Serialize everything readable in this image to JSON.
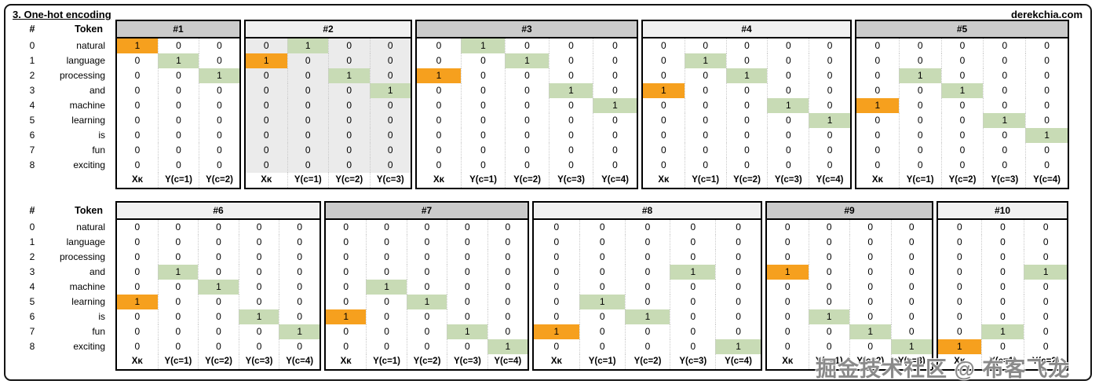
{
  "title": "3. One-hot encoding",
  "site": "derekchia.com",
  "watermark": "掘金技术社区 @ 布客飞龙",
  "colors": {
    "orange": "#F6A01E",
    "green": "#C8DBB5",
    "header_dark": "#CBCBCB",
    "header_light": "#F0F0F0",
    "shaded_body": "#EBEBEB"
  },
  "legend": {
    "hash": "#",
    "token": "Token"
  },
  "tokens": [
    {
      "id": "0",
      "label": "natural"
    },
    {
      "id": "1",
      "label": "language"
    },
    {
      "id": "2",
      "label": "processing"
    },
    {
      "id": "3",
      "label": "and"
    },
    {
      "id": "4",
      "label": "machine"
    },
    {
      "id": "5",
      "label": "learning"
    },
    {
      "id": "6",
      "label": "is"
    },
    {
      "id": "7",
      "label": "fun"
    },
    {
      "id": "8",
      "label": "exciting"
    }
  ],
  "cell_values": {
    "default": "0",
    "marked": "1"
  },
  "windows": [
    {
      "label": "#1",
      "header_shade": "dark",
      "body_shaded": false,
      "cols": [
        "Xᴋ",
        "Y(c=1)",
        "Y(c=2)"
      ],
      "marks": [
        {
          "row": 0,
          "col": 0,
          "type": "orange"
        },
        {
          "row": 1,
          "col": 1,
          "type": "green"
        },
        {
          "row": 2,
          "col": 2,
          "type": "green"
        }
      ]
    },
    {
      "label": "#2",
      "header_shade": "light",
      "body_shaded": true,
      "cols": [
        "Xᴋ",
        "Y(c=1)",
        "Y(c=2)",
        "Y(c=3)"
      ],
      "marks": [
        {
          "row": 0,
          "col": 1,
          "type": "green"
        },
        {
          "row": 1,
          "col": 0,
          "type": "orange"
        },
        {
          "row": 2,
          "col": 2,
          "type": "green"
        },
        {
          "row": 3,
          "col": 3,
          "type": "green"
        }
      ]
    },
    {
      "label": "#3",
      "header_shade": "dark",
      "body_shaded": false,
      "cols": [
        "Xᴋ",
        "Y(c=1)",
        "Y(c=2)",
        "Y(c=3)",
        "Y(c=4)"
      ],
      "marks": [
        {
          "row": 0,
          "col": 1,
          "type": "green"
        },
        {
          "row": 1,
          "col": 2,
          "type": "green"
        },
        {
          "row": 2,
          "col": 0,
          "type": "orange"
        },
        {
          "row": 3,
          "col": 3,
          "type": "green"
        },
        {
          "row": 4,
          "col": 4,
          "type": "green"
        }
      ]
    },
    {
      "label": "#4",
      "header_shade": "light",
      "body_shaded": false,
      "cols": [
        "Xᴋ",
        "Y(c=1)",
        "Y(c=2)",
        "Y(c=3)",
        "Y(c=4)"
      ],
      "marks": [
        {
          "row": 1,
          "col": 1,
          "type": "green"
        },
        {
          "row": 2,
          "col": 2,
          "type": "green"
        },
        {
          "row": 3,
          "col": 0,
          "type": "orange"
        },
        {
          "row": 4,
          "col": 3,
          "type": "green"
        },
        {
          "row": 5,
          "col": 4,
          "type": "green"
        }
      ]
    },
    {
      "label": "#5",
      "header_shade": "dark",
      "body_shaded": false,
      "cols": [
        "Xᴋ",
        "Y(c=1)",
        "Y(c=2)",
        "Y(c=3)",
        "Y(c=4)"
      ],
      "marks": [
        {
          "row": 2,
          "col": 1,
          "type": "green"
        },
        {
          "row": 3,
          "col": 2,
          "type": "green"
        },
        {
          "row": 4,
          "col": 0,
          "type": "orange"
        },
        {
          "row": 5,
          "col": 3,
          "type": "green"
        },
        {
          "row": 6,
          "col": 4,
          "type": "green"
        }
      ]
    },
    {
      "label": "#6",
      "header_shade": "light",
      "body_shaded": false,
      "cols": [
        "Xᴋ",
        "Y(c=1)",
        "Y(c=2)",
        "Y(c=3)",
        "Y(c=4)"
      ],
      "marks": [
        {
          "row": 3,
          "col": 1,
          "type": "green"
        },
        {
          "row": 4,
          "col": 2,
          "type": "green"
        },
        {
          "row": 5,
          "col": 0,
          "type": "orange"
        },
        {
          "row": 6,
          "col": 3,
          "type": "green"
        },
        {
          "row": 7,
          "col": 4,
          "type": "green"
        }
      ]
    },
    {
      "label": "#7",
      "header_shade": "dark",
      "body_shaded": false,
      "cols": [
        "Xᴋ",
        "Y(c=1)",
        "Y(c=2)",
        "Y(c=3)",
        "Y(c=4)"
      ],
      "marks": [
        {
          "row": 4,
          "col": 1,
          "type": "green"
        },
        {
          "row": 5,
          "col": 2,
          "type": "green"
        },
        {
          "row": 6,
          "col": 0,
          "type": "orange"
        },
        {
          "row": 7,
          "col": 3,
          "type": "green"
        },
        {
          "row": 8,
          "col": 4,
          "type": "green"
        }
      ]
    },
    {
      "label": "#8",
      "header_shade": "light",
      "body_shaded": false,
      "cols": [
        "Xᴋ",
        "Y(c=1)",
        "Y(c=2)",
        "Y(c=3)",
        "Y(c=4)"
      ],
      "marks": [
        {
          "row": 3,
          "col": 3,
          "type": "green"
        },
        {
          "row": 5,
          "col": 1,
          "type": "green"
        },
        {
          "row": 6,
          "col": 2,
          "type": "green"
        },
        {
          "row": 7,
          "col": 0,
          "type": "orange"
        },
        {
          "row": 8,
          "col": 4,
          "type": "green"
        }
      ]
    },
    {
      "label": "#9",
      "header_shade": "dark",
      "body_shaded": false,
      "cols": [
        "Xᴋ",
        "Y(c=1)",
        "Y(c=2)",
        "Y(c=3)"
      ],
      "marks": [
        {
          "row": 3,
          "col": 0,
          "type": "orange"
        },
        {
          "row": 6,
          "col": 1,
          "type": "green"
        },
        {
          "row": 7,
          "col": 2,
          "type": "green"
        },
        {
          "row": 8,
          "col": 3,
          "type": "green"
        }
      ]
    },
    {
      "label": "#10",
      "header_shade": "light",
      "body_shaded": false,
      "cols": [
        "Xᴋ",
        "Y(c=1)",
        "Y(c=2)"
      ],
      "marks": [
        {
          "row": 3,
          "col": 2,
          "type": "green"
        },
        {
          "row": 7,
          "col": 1,
          "type": "green"
        },
        {
          "row": 8,
          "col": 0,
          "type": "orange"
        }
      ]
    }
  ]
}
